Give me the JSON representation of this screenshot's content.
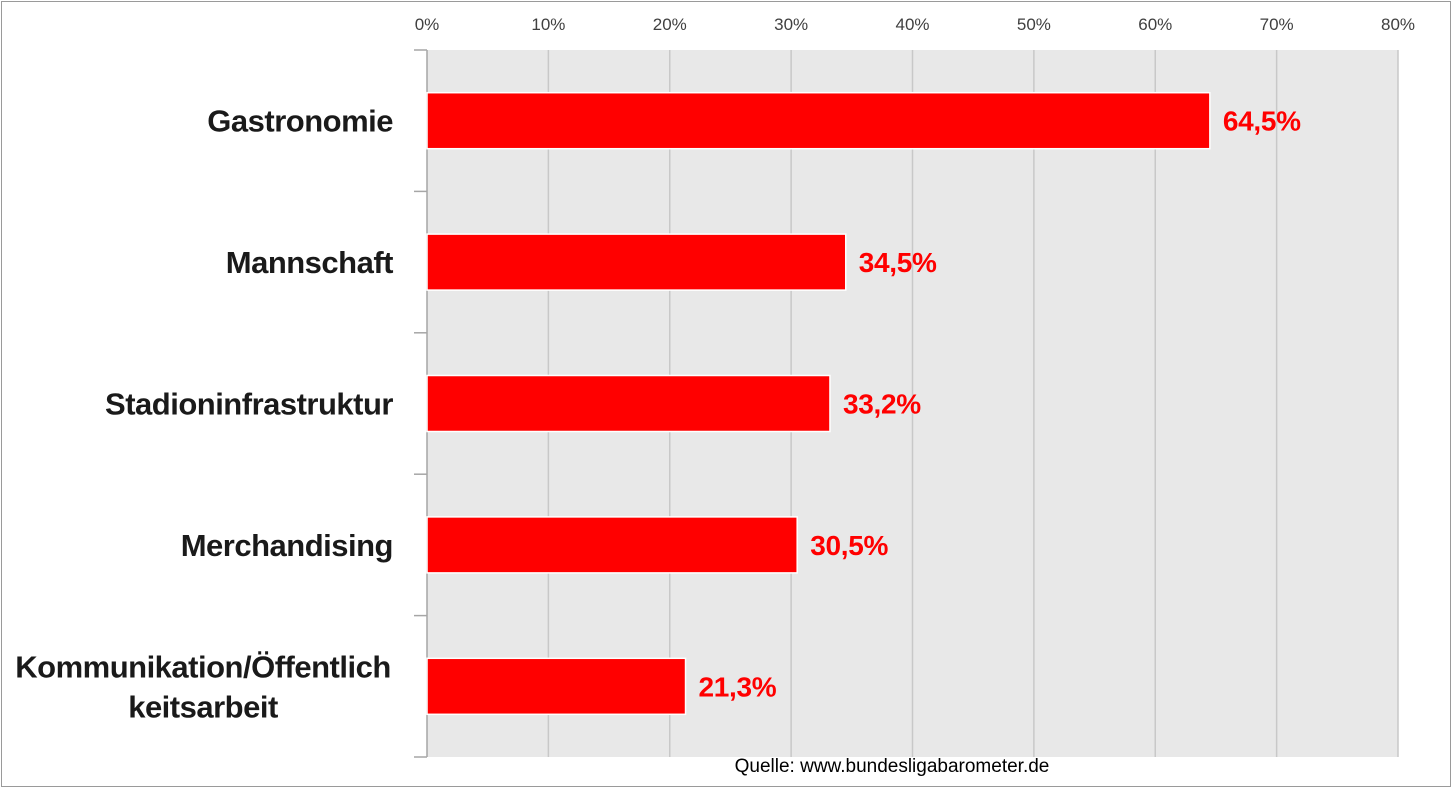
{
  "chart_data": {
    "type": "bar",
    "orientation": "horizontal",
    "categories": [
      "Gastronomie",
      "Mannschaft",
      "Stadioninfrastruktur",
      "Merchandising",
      "Kommunikation/Öffentlichkeitsarbeit"
    ],
    "category_label_lines": [
      [
        "Gastronomie"
      ],
      [
        "Mannschaft"
      ],
      [
        "Stadioninfrastruktur"
      ],
      [
        "Merchandising"
      ],
      [
        "Kommunikation/Öffentlich",
        "keitsarbeit"
      ]
    ],
    "values": [
      64.5,
      34.5,
      33.2,
      30.5,
      21.3
    ],
    "data_labels": [
      "64,5%",
      "34,5%",
      "33,2%",
      "30,5%",
      "21,3%"
    ],
    "xlim": [
      0,
      80
    ],
    "xticks": [
      0,
      10,
      20,
      30,
      40,
      50,
      60,
      70,
      80
    ],
    "xtick_labels": [
      "0%",
      "10%",
      "20%",
      "30%",
      "40%",
      "50%",
      "60%",
      "70%",
      "80%"
    ],
    "x_axis_position": "top",
    "grid": true,
    "legend": "none",
    "bar_color": "#ff0000",
    "data_label_color": "#ff0000",
    "plot_background": "#e8e8e8",
    "source": "Quelle: www.bundesligabarometer.de"
  }
}
